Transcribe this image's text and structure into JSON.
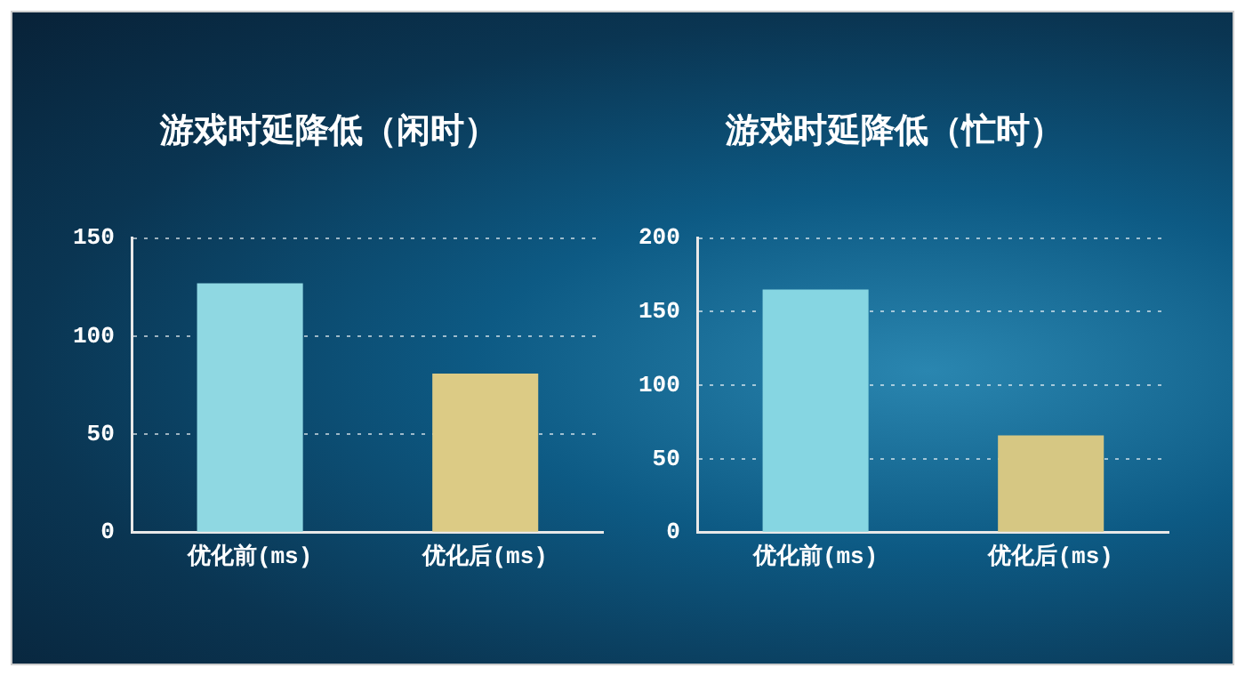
{
  "chart_data": [
    {
      "type": "bar",
      "title": "游戏时延降低（闲时）",
      "categories": [
        "优化前(ms)",
        "优化后(ms)"
      ],
      "values": [
        127,
        81
      ],
      "colors": [
        "#8fd8e2",
        "#dccb85"
      ],
      "ylim": [
        0,
        150
      ],
      "yticks": [
        0,
        50,
        100,
        150
      ],
      "grid": "y",
      "legend": false
    },
    {
      "type": "bar",
      "title": "游戏时延降低（忙时）",
      "categories": [
        "优化前(ms)",
        "优化后(ms)"
      ],
      "values": [
        165,
        66
      ],
      "colors": [
        "#86d6e2",
        "#d6c783"
      ],
      "ylim": [
        0,
        200
      ],
      "yticks": [
        0,
        50,
        100,
        150,
        200
      ],
      "grid": "y",
      "legend": false
    }
  ]
}
